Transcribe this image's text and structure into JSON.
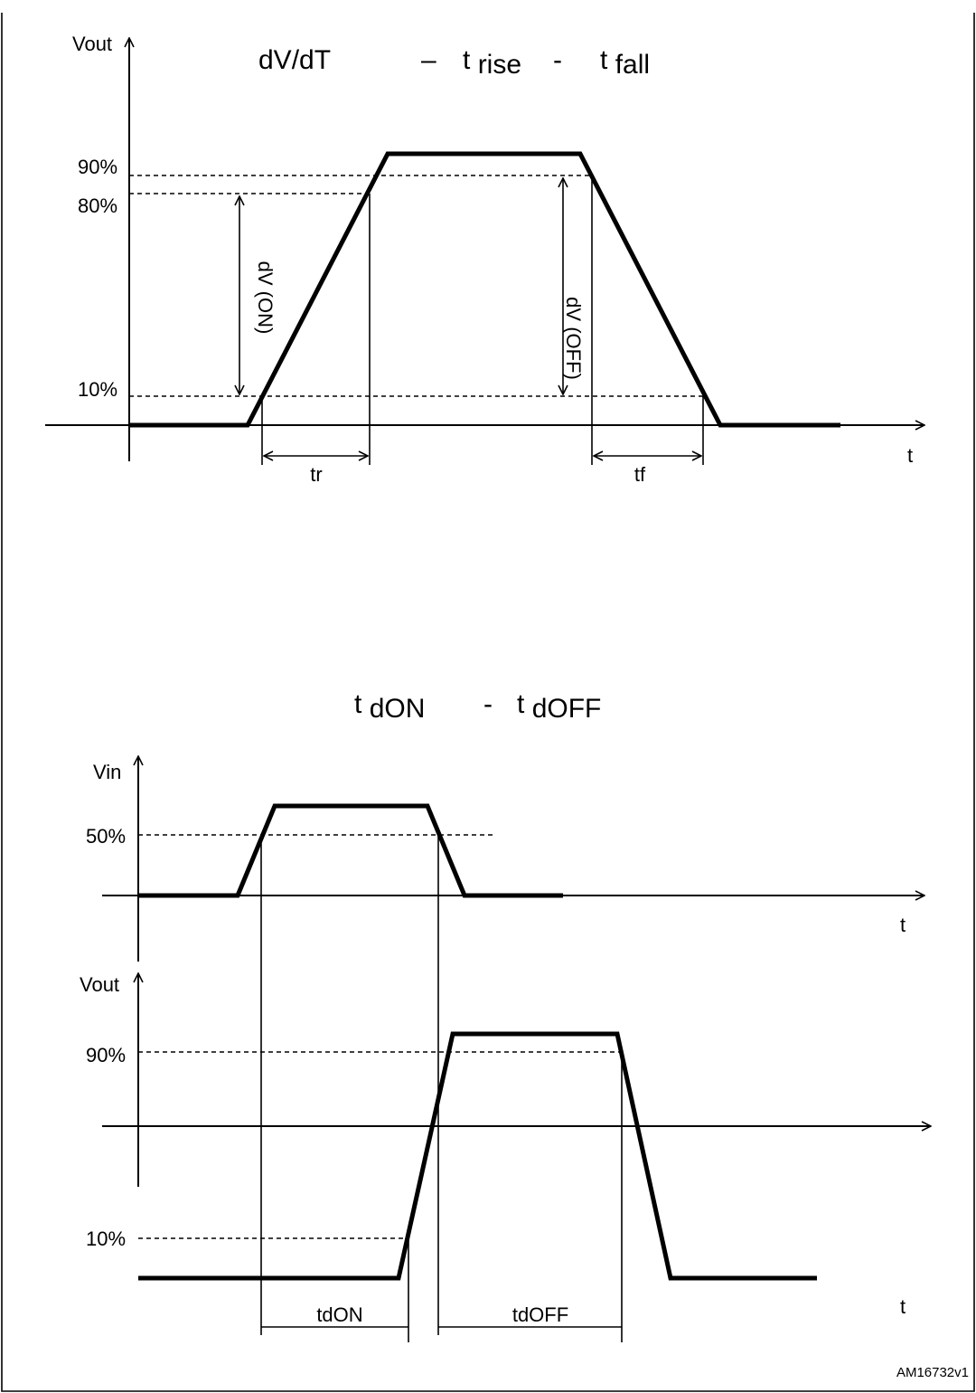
{
  "colors": {
    "line": "#000000",
    "background": "#ffffff",
    "frame": "#000000"
  },
  "top_panel": {
    "y_axis_label": "Vout",
    "x_axis_label": "t",
    "title": {
      "part1": "dV/dT",
      "sep1": "–",
      "part2_base": "t",
      "part2_sub": "rise",
      "sep2": "-",
      "part3_base": "t",
      "part3_sub": "fall"
    },
    "level_labels": {
      "p90": "90%",
      "p80": "80%",
      "p10": "10%"
    },
    "dv_on_label": "dV (ON)",
    "dv_off_label": "dV (OFF)",
    "tr_label": "tr",
    "tf_label": "tf"
  },
  "bottom_panel": {
    "title": {
      "part1_base": "t",
      "part1_sub": "dON",
      "sep": "-",
      "part2_base": "t",
      "part2_sub": "dOFF"
    },
    "vin_axis_label": "Vin",
    "vin_level": "50%",
    "vin_x_label": "t",
    "vout_axis_label": "Vout",
    "vout_levels": {
      "p90": "90%",
      "p10": "10%"
    },
    "vout_x_label": "t",
    "tdon_label": "tdON",
    "tdoff_label": "tdOFF"
  },
  "figure_id": "AM16732v1"
}
